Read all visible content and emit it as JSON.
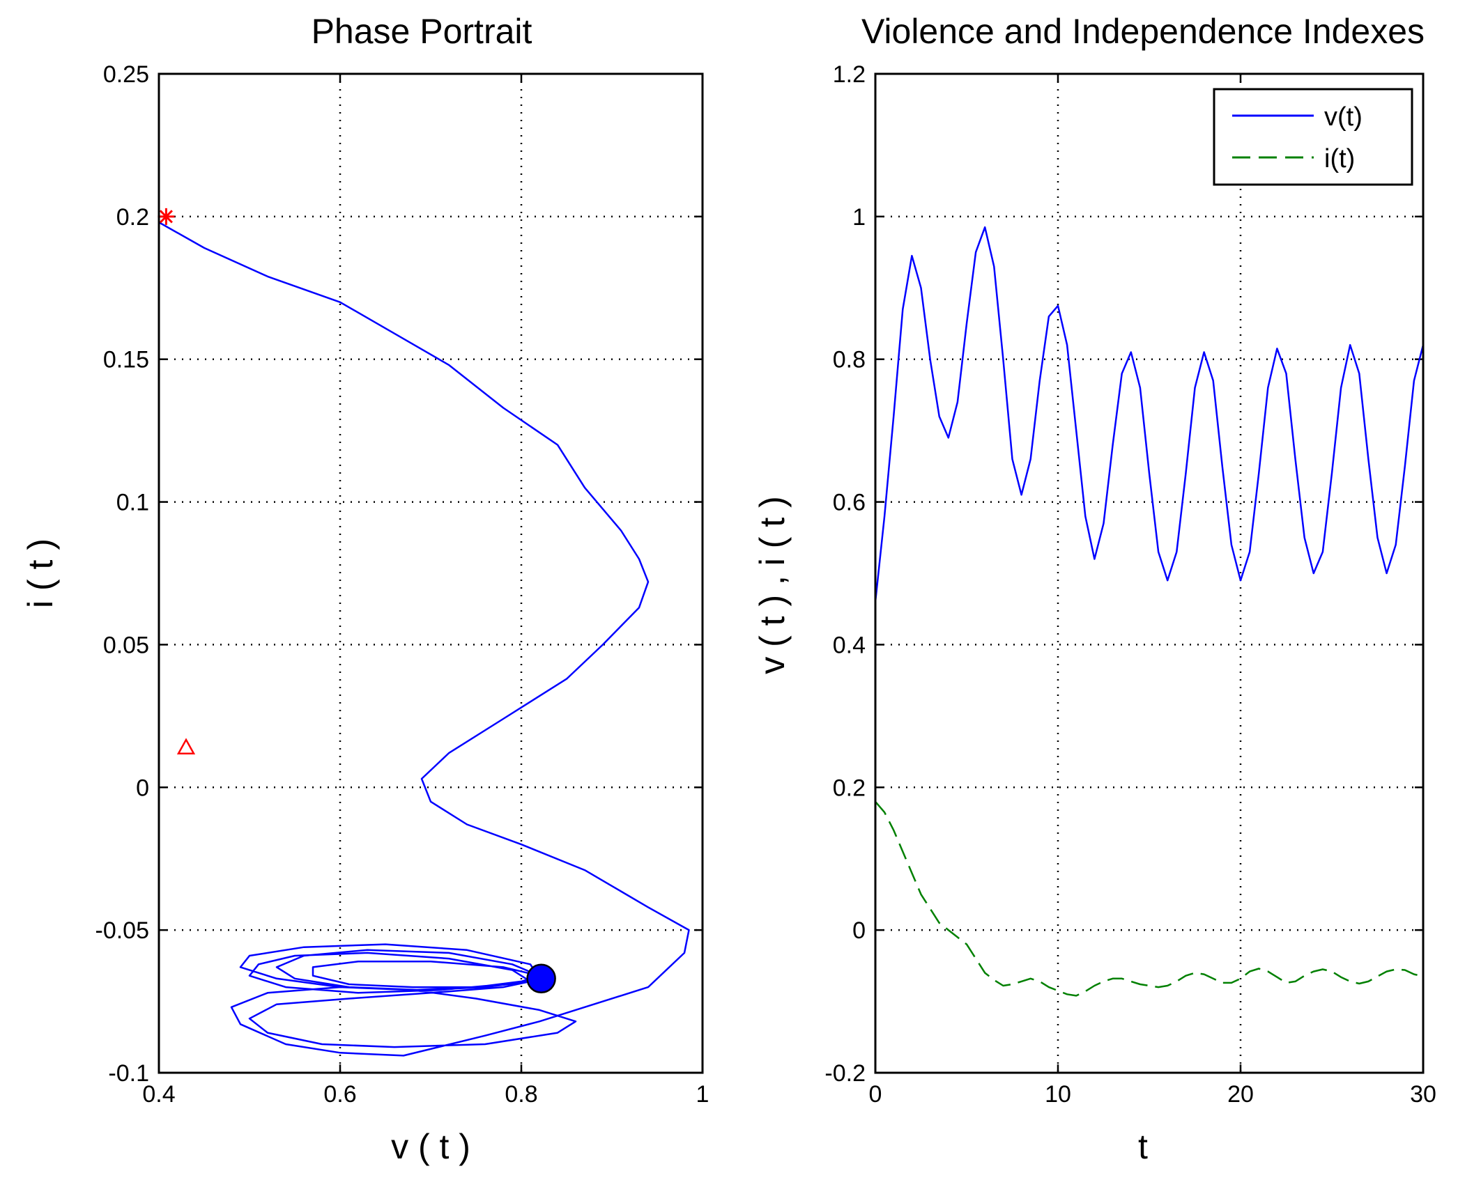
{
  "chart_data": [
    {
      "type": "line",
      "title": "Phase Portrait",
      "xlabel": "v ( t )",
      "ylabel": "i ( t )",
      "xlim": [
        0.4,
        1.0
      ],
      "ylim": [
        -0.1,
        0.25
      ],
      "xticks": [
        0.4,
        0.6,
        0.8,
        1.0
      ],
      "xtick_labels": [
        "0.4",
        "0.6",
        "0.8",
        "1"
      ],
      "yticks": [
        -0.1,
        -0.05,
        0,
        0.05,
        0.1,
        0.15,
        0.2,
        0.25
      ],
      "ytick_labels": [
        "-0.1",
        "-0.05",
        "0",
        "0.05",
        "0.1",
        "0.15",
        "0.2",
        "0.25"
      ],
      "grid": true,
      "colors": {
        "trajectory": "#0000ff",
        "start": "#ff0000",
        "eq": "#ff0000",
        "end": "#0000ff"
      },
      "series": [
        {
          "name": "trajectory",
          "points": [
            [
              0.4,
              0.198
            ],
            [
              0.45,
              0.189
            ],
            [
              0.52,
              0.179
            ],
            [
              0.6,
              0.17
            ],
            [
              0.66,
              0.159
            ],
            [
              0.72,
              0.148
            ],
            [
              0.78,
              0.133
            ],
            [
              0.84,
              0.12
            ],
            [
              0.87,
              0.105
            ],
            [
              0.91,
              0.09
            ],
            [
              0.93,
              0.08
            ],
            [
              0.94,
              0.072
            ],
            [
              0.93,
              0.063
            ],
            [
              0.89,
              0.05
            ],
            [
              0.85,
              0.038
            ],
            [
              0.78,
              0.024
            ],
            [
              0.72,
              0.012
            ],
            [
              0.69,
              0.003
            ],
            [
              0.7,
              -0.005
            ],
            [
              0.74,
              -0.013
            ],
            [
              0.8,
              -0.02
            ],
            [
              0.87,
              -0.029
            ],
            [
              0.94,
              -0.042
            ],
            [
              0.985,
              -0.05
            ],
            [
              0.98,
              -0.058
            ],
            [
              0.94,
              -0.07
            ],
            [
              0.88,
              -0.076
            ],
            [
              0.82,
              -0.082
            ],
            [
              0.76,
              -0.087
            ],
            [
              0.67,
              -0.094
            ],
            [
              0.6,
              -0.093
            ],
            [
              0.54,
              -0.09
            ],
            [
              0.49,
              -0.083
            ],
            [
              0.48,
              -0.077
            ],
            [
              0.52,
              -0.072
            ],
            [
              0.6,
              -0.07
            ],
            [
              0.68,
              -0.071
            ],
            [
              0.75,
              -0.074
            ],
            [
              0.82,
              -0.078
            ],
            [
              0.86,
              -0.082
            ],
            [
              0.84,
              -0.086
            ],
            [
              0.76,
              -0.09
            ],
            [
              0.66,
              -0.091
            ],
            [
              0.58,
              -0.09
            ],
            [
              0.52,
              -0.086
            ],
            [
              0.5,
              -0.081
            ],
            [
              0.53,
              -0.076
            ],
            [
              0.61,
              -0.074
            ],
            [
              0.7,
              -0.072
            ],
            [
              0.78,
              -0.07
            ],
            [
              0.81,
              -0.068
            ],
            [
              0.79,
              -0.064
            ],
            [
              0.72,
              -0.06
            ],
            [
              0.63,
              -0.058
            ],
            [
              0.55,
              -0.059
            ],
            [
              0.51,
              -0.062
            ],
            [
              0.5,
              -0.066
            ],
            [
              0.54,
              -0.07
            ],
            [
              0.62,
              -0.072
            ],
            [
              0.71,
              -0.071
            ],
            [
              0.78,
              -0.069
            ],
            [
              0.82,
              -0.067
            ],
            [
              0.81,
              -0.062
            ],
            [
              0.74,
              -0.057
            ],
            [
              0.65,
              -0.055
            ],
            [
              0.56,
              -0.056
            ],
            [
              0.5,
              -0.059
            ],
            [
              0.49,
              -0.063
            ],
            [
              0.53,
              -0.067
            ],
            [
              0.6,
              -0.07
            ],
            [
              0.68,
              -0.071
            ],
            [
              0.75,
              -0.07
            ],
            [
              0.8,
              -0.068
            ],
            [
              0.82,
              -0.066
            ],
            [
              0.79,
              -0.062
            ],
            [
              0.72,
              -0.058
            ],
            [
              0.63,
              -0.057
            ],
            [
              0.56,
              -0.059
            ],
            [
              0.53,
              -0.063
            ],
            [
              0.55,
              -0.067
            ],
            [
              0.61,
              -0.07
            ],
            [
              0.69,
              -0.071
            ],
            [
              0.76,
              -0.07
            ],
            [
              0.81,
              -0.068
            ],
            [
              0.82,
              -0.066
            ],
            [
              0.78,
              -0.063
            ],
            [
              0.7,
              -0.061
            ],
            [
              0.62,
              -0.061
            ],
            [
              0.57,
              -0.063
            ],
            [
              0.57,
              -0.066
            ],
            [
              0.61,
              -0.069
            ],
            [
              0.68,
              -0.07
            ],
            [
              0.75,
              -0.07
            ],
            [
              0.8,
              -0.068
            ],
            [
              0.82,
              -0.067
            ]
          ]
        }
      ],
      "markers": [
        {
          "name": "start",
          "symbol": "asterisk",
          "x": 0.408,
          "y": 0.2
        },
        {
          "name": "equilibrium",
          "symbol": "triangle",
          "x": 0.43,
          "y": 0.014
        },
        {
          "name": "end",
          "symbol": "dot",
          "x": 0.822,
          "y": -0.067
        }
      ]
    },
    {
      "type": "line",
      "title": "Violence and Independence Indexes",
      "xlabel": "t",
      "ylabel": "v ( t ) , i ( t )",
      "xlim": [
        0,
        30
      ],
      "ylim": [
        -0.2,
        1.2
      ],
      "xticks": [
        0,
        10,
        20,
        30
      ],
      "xtick_labels": [
        "0",
        "10",
        "20",
        "30"
      ],
      "yticks": [
        -0.2,
        0,
        0.2,
        0.4,
        0.6,
        0.8,
        1.0,
        1.2
      ],
      "ytick_labels": [
        "-0.2",
        "0",
        "0.2",
        "0.4",
        "0.6",
        "0.8",
        "1",
        "1.2"
      ],
      "grid": true,
      "legend": {
        "position": "top-right",
        "entries": [
          {
            "label": "v(t)",
            "color": "#0000ff",
            "style": "solid"
          },
          {
            "label": "i(t)",
            "color": "#008000",
            "style": "dashed"
          }
        ]
      },
      "series": [
        {
          "name": "v(t)",
          "color": "#0000ff",
          "style": "solid",
          "points": [
            [
              0,
              0.46
            ],
            [
              0.5,
              0.58
            ],
            [
              1.0,
              0.72
            ],
            [
              1.5,
              0.87
            ],
            [
              2.0,
              0.945
            ],
            [
              2.5,
              0.9
            ],
            [
              3.0,
              0.8
            ],
            [
              3.5,
              0.72
            ],
            [
              4.0,
              0.69
            ],
            [
              4.5,
              0.74
            ],
            [
              5.0,
              0.85
            ],
            [
              5.5,
              0.95
            ],
            [
              6.0,
              0.985
            ],
            [
              6.5,
              0.93
            ],
            [
              7.0,
              0.8
            ],
            [
              7.5,
              0.66
            ],
            [
              8.0,
              0.61
            ],
            [
              8.5,
              0.66
            ],
            [
              9.0,
              0.77
            ],
            [
              9.5,
              0.86
            ],
            [
              10.0,
              0.875
            ],
            [
              10.5,
              0.82
            ],
            [
              11.0,
              0.7
            ],
            [
              11.5,
              0.58
            ],
            [
              12.0,
              0.52
            ],
            [
              12.5,
              0.57
            ],
            [
              13.0,
              0.68
            ],
            [
              13.5,
              0.78
            ],
            [
              14.0,
              0.81
            ],
            [
              14.5,
              0.76
            ],
            [
              15.0,
              0.64
            ],
            [
              15.5,
              0.53
            ],
            [
              16.0,
              0.49
            ],
            [
              16.5,
              0.53
            ],
            [
              17.0,
              0.64
            ],
            [
              17.5,
              0.76
            ],
            [
              18.0,
              0.81
            ],
            [
              18.5,
              0.77
            ],
            [
              19.0,
              0.65
            ],
            [
              19.5,
              0.54
            ],
            [
              20.0,
              0.49
            ],
            [
              20.5,
              0.53
            ],
            [
              21.0,
              0.64
            ],
            [
              21.5,
              0.76
            ],
            [
              22.0,
              0.815
            ],
            [
              22.5,
              0.78
            ],
            [
              23.0,
              0.66
            ],
            [
              23.5,
              0.55
            ],
            [
              24.0,
              0.5
            ],
            [
              24.5,
              0.53
            ],
            [
              25.0,
              0.64
            ],
            [
              25.5,
              0.76
            ],
            [
              26.0,
              0.82
            ],
            [
              26.5,
              0.78
            ],
            [
              27.0,
              0.66
            ],
            [
              27.5,
              0.55
            ],
            [
              28.0,
              0.5
            ],
            [
              28.5,
              0.54
            ],
            [
              29.0,
              0.65
            ],
            [
              29.5,
              0.77
            ],
            [
              30.0,
              0.82
            ]
          ]
        },
        {
          "name": "i(t)",
          "color": "#008000",
          "style": "dashed",
          "points": [
            [
              0,
              0.18
            ],
            [
              0.5,
              0.165
            ],
            [
              1.0,
              0.14
            ],
            [
              1.5,
              0.11
            ],
            [
              2.0,
              0.08
            ],
            [
              2.5,
              0.05
            ],
            [
              3.0,
              0.03
            ],
            [
              3.5,
              0.01
            ],
            [
              4.0,
              0.0
            ],
            [
              4.5,
              -0.01
            ],
            [
              5.0,
              -0.02
            ],
            [
              5.5,
              -0.04
            ],
            [
              6.0,
              -0.06
            ],
            [
              6.5,
              -0.07
            ],
            [
              7.0,
              -0.078
            ],
            [
              7.5,
              -0.076
            ],
            [
              8.0,
              -0.072
            ],
            [
              8.5,
              -0.068
            ],
            [
              9.0,
              -0.072
            ],
            [
              9.5,
              -0.08
            ],
            [
              10.0,
              -0.085
            ],
            [
              10.5,
              -0.09
            ],
            [
              11.0,
              -0.092
            ],
            [
              11.5,
              -0.086
            ],
            [
              12.0,
              -0.078
            ],
            [
              12.5,
              -0.072
            ],
            [
              13.0,
              -0.068
            ],
            [
              13.5,
              -0.068
            ],
            [
              14.0,
              -0.072
            ],
            [
              14.5,
              -0.076
            ],
            [
              15.0,
              -0.078
            ],
            [
              15.5,
              -0.08
            ],
            [
              16.0,
              -0.078
            ],
            [
              16.5,
              -0.072
            ],
            [
              17.0,
              -0.064
            ],
            [
              17.5,
              -0.06
            ],
            [
              18.0,
              -0.062
            ],
            [
              18.5,
              -0.068
            ],
            [
              19.0,
              -0.074
            ],
            [
              19.5,
              -0.074
            ],
            [
              20.0,
              -0.068
            ],
            [
              20.5,
              -0.058
            ],
            [
              21.0,
              -0.054
            ],
            [
              21.5,
              -0.058
            ],
            [
              22.0,
              -0.066
            ],
            [
              22.5,
              -0.074
            ],
            [
              23.0,
              -0.072
            ],
            [
              23.5,
              -0.064
            ],
            [
              24.0,
              -0.058
            ],
            [
              24.5,
              -0.055
            ],
            [
              25.0,
              -0.058
            ],
            [
              25.5,
              -0.066
            ],
            [
              26.0,
              -0.072
            ],
            [
              26.5,
              -0.075
            ],
            [
              27.0,
              -0.072
            ],
            [
              27.5,
              -0.065
            ],
            [
              28.0,
              -0.058
            ],
            [
              28.5,
              -0.055
            ],
            [
              29.0,
              -0.056
            ],
            [
              29.5,
              -0.062
            ],
            [
              30.0,
              -0.065
            ]
          ]
        }
      ]
    }
  ]
}
